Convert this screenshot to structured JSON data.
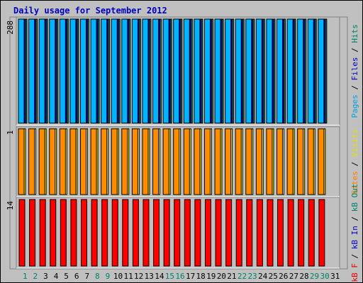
{
  "chart_data": {
    "type": "bar",
    "title": "Daily usage for September 2012",
    "days": [
      "1",
      "2",
      "3",
      "4",
      "5",
      "6",
      "7",
      "8",
      "9",
      "10",
      "11",
      "12",
      "13",
      "14",
      "15",
      "16",
      "17",
      "18",
      "19",
      "20",
      "21",
      "22",
      "23",
      "24",
      "25",
      "26",
      "27",
      "28",
      "29",
      "30",
      "31"
    ],
    "weekend_days": [
      "1",
      "2",
      "8",
      "9",
      "15",
      "16",
      "22",
      "23",
      "29",
      "30"
    ],
    "panels": [
      {
        "id": "top",
        "max_label": "288",
        "max": 288,
        "right_label": [
          {
            "text": "Pages",
            "color": "#00a0e0"
          },
          {
            "text": " / ",
            "color": "#000000"
          },
          {
            "text": "Files",
            "color": "#0000c0"
          },
          {
            "text": " / ",
            "color": "#000000"
          },
          {
            "text": "Hits",
            "color": "#00806a"
          }
        ],
        "series": [
          {
            "name": "Hits",
            "color": "#00806a",
            "values": [
              288,
              288,
              288,
              288,
              288,
              288,
              288,
              288,
              288,
              288,
              288,
              288,
              288,
              288,
              288,
              288,
              288,
              288,
              288,
              288,
              288,
              288,
              288,
              288,
              288,
              288,
              288,
              288,
              288,
              288
            ]
          },
          {
            "name": "Files",
            "color": "#0000c0",
            "values": [
              288,
              288,
              288,
              288,
              288,
              288,
              288,
              288,
              288,
              288,
              288,
              288,
              288,
              288,
              288,
              288,
              288,
              288,
              288,
              288,
              288,
              288,
              288,
              288,
              288,
              288,
              288,
              288,
              288,
              288
            ]
          },
          {
            "name": "Pages",
            "color": "#00b4ff",
            "values": [
              288,
              288,
              288,
              288,
              288,
              288,
              288,
              288,
              288,
              288,
              288,
              288,
              288,
              288,
              288,
              288,
              288,
              288,
              288,
              288,
              288,
              288,
              288,
              288,
              288,
              288,
              288,
              288,
              288,
              288
            ]
          }
        ]
      },
      {
        "id": "middle",
        "max_label": "1",
        "max": 1,
        "right_label": [
          {
            "text": "Sites",
            "color": "#ff8000"
          },
          {
            "text": " / ",
            "color": "#000000"
          },
          {
            "text": "Visits",
            "color": "#e0e000"
          }
        ],
        "series": [
          {
            "name": "Visits",
            "color": "#ffff00",
            "values": [
              1,
              1,
              1,
              1,
              1,
              1,
              1,
              1,
              1,
              1,
              1,
              1,
              1,
              1,
              1,
              1,
              1,
              1,
              1,
              1,
              1,
              1,
              1,
              1,
              1,
              1,
              1,
              1,
              1,
              1
            ]
          },
          {
            "name": "Sites",
            "color": "#ff8c00",
            "values": [
              1,
              1,
              1,
              1,
              1,
              1,
              1,
              1,
              1,
              1,
              1,
              1,
              1,
              1,
              1,
              1,
              1,
              1,
              1,
              1,
              1,
              1,
              1,
              1,
              1,
              1,
              1,
              1,
              1,
              1
            ]
          }
        ]
      },
      {
        "id": "bottom",
        "max_label": "14",
        "max": 14,
        "right_label": [
          {
            "text": "kB F",
            "color": "#e00000"
          },
          {
            "text": " / ",
            "color": "#000000"
          },
          {
            "text": "kB In",
            "color": "#0000c0"
          },
          {
            "text": " / ",
            "color": "#000000"
          },
          {
            "text": "kB Out",
            "color": "#00806a"
          }
        ],
        "series": [
          {
            "name": "kB F",
            "color": "#ff0000",
            "values": [
              14,
              14,
              14,
              14,
              14,
              14,
              14,
              14,
              14,
              14,
              14,
              14,
              14,
              14,
              14,
              14,
              14,
              14,
              14,
              14,
              14,
              14,
              14,
              14,
              14,
              14,
              14,
              14,
              14,
              14
            ]
          }
        ]
      }
    ],
    "colors": {
      "background": "#c0c0c0",
      "panel_bg": "#c0c0c0",
      "title": "#0000c0",
      "weekday_label": "#000000",
      "weekend_label": "#00806a"
    }
  }
}
